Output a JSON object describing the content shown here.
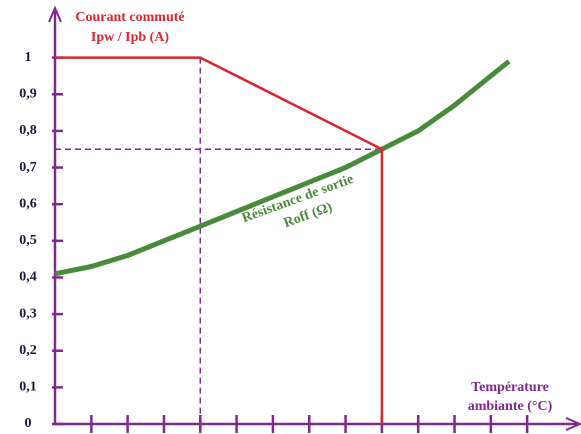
{
  "chart_data": {
    "type": "line",
    "ylabel": [
      "Courant commuté",
      "Ipw / Ipb (A)"
    ],
    "xlabel": [
      "Température",
      "ambiante (°C)"
    ],
    "xlim": [
      0,
      14.4
    ],
    "xticks": [
      1,
      2,
      3,
      4,
      5,
      6,
      7,
      8,
      9,
      10,
      11,
      12,
      13
    ],
    "ylim": [
      0,
      1.13
    ],
    "yticks": [
      0,
      {
        "value": 0.1,
        "label": "0,1"
      },
      {
        "value": 0.2,
        "label": "0,2"
      },
      {
        "value": 0.3,
        "label": "0,3"
      },
      {
        "value": 0.4,
        "label": "0,4"
      },
      {
        "value": 0.5,
        "label": "0,5"
      },
      {
        "value": 0.6,
        "label": "0,6"
      },
      {
        "value": 0.7,
        "label": "0,7"
      },
      {
        "value": 0.8,
        "label": "0,8"
      },
      {
        "value": 0.9,
        "label": "0,9"
      },
      1
    ],
    "axis_color": "#7d2a8c",
    "series": [
      {
        "color": "#d9262f",
        "x": [
          0,
          4,
          9,
          9
        ],
        "values": [
          1,
          1,
          0.75,
          0
        ]
      },
      {
        "name": [
          "Résistance de sortie",
          "Roff (Ω)"
        ],
        "color": "#4a8a3c",
        "x": [
          0,
          1,
          2,
          3,
          4,
          5,
          6,
          7,
          8,
          9,
          10,
          11,
          12,
          12.5
        ],
        "values": [
          0.41,
          0.43,
          0.46,
          0.5,
          0.54,
          0.58,
          0.62,
          0.66,
          0.7,
          0.75,
          0.8,
          0.87,
          0.95,
          0.99
        ]
      }
    ]
  }
}
